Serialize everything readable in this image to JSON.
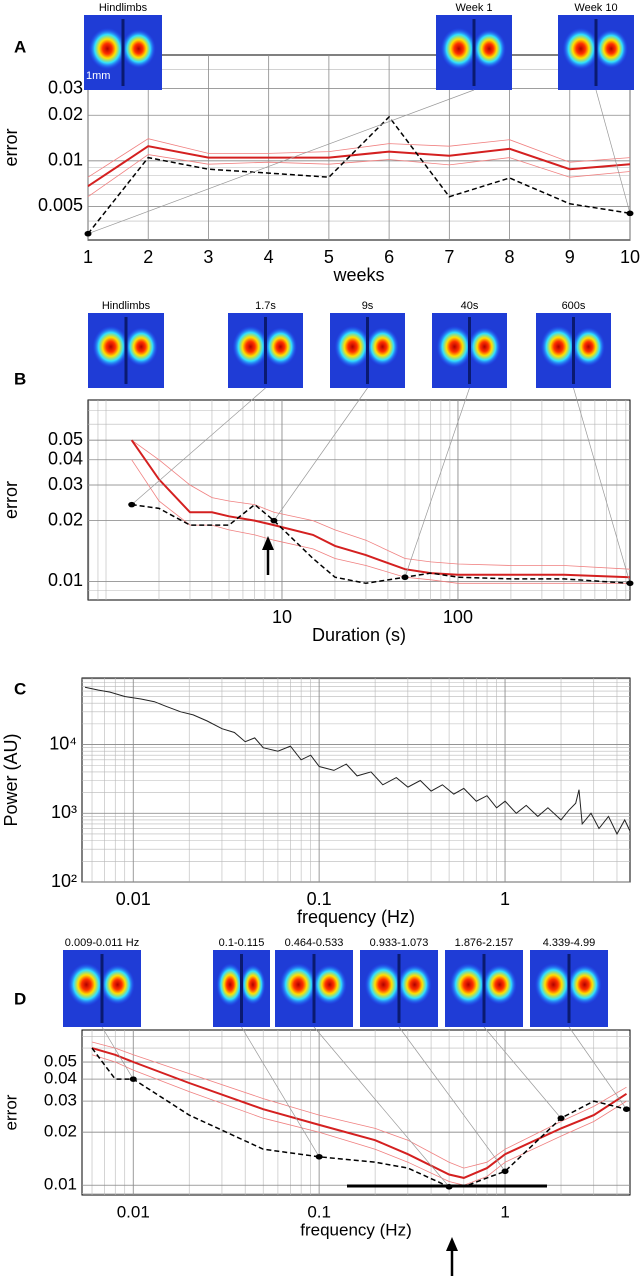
{
  "chart_data": [
    {
      "type": "line",
      "panel": "A",
      "xlabel": "weeks",
      "ylabel": "error",
      "thumbs": [
        "Hindlimbs",
        "Week 1",
        "Week 10"
      ],
      "scale_label": "1mm",
      "x": [
        1,
        2,
        3,
        4,
        5,
        6,
        7,
        8,
        9,
        10
      ],
      "xlim": [
        1,
        10
      ],
      "xticks": [
        1,
        2,
        3,
        4,
        5,
        6,
        7,
        8,
        9,
        10
      ],
      "ylim": [
        0.003,
        0.05
      ],
      "yscale": "log",
      "yticks": [
        0.005,
        0.01,
        0.02,
        0.03
      ],
      "grid": true,
      "minor_grid": true,
      "series": [
        {
          "color": "#f08080",
          "width": 0.8,
          "values": [
            0.0078,
            0.014,
            0.0112,
            0.0112,
            0.0115,
            0.013,
            0.0125,
            0.0138,
            0.0098,
            0.0105
          ]
        },
        {
          "color": "#f08080",
          "width": 0.8,
          "values": [
            0.0058,
            0.011,
            0.0095,
            0.0098,
            0.0095,
            0.0102,
            0.0094,
            0.0105,
            0.0078,
            0.0085
          ]
        },
        {
          "color": "#d42020",
          "width": 2,
          "values": [
            0.0068,
            0.0125,
            0.0105,
            0.0105,
            0.0105,
            0.0115,
            0.0108,
            0.012,
            0.0088,
            0.0095
          ]
        },
        {
          "color": "#000000",
          "width": 1.5,
          "style": "dashed",
          "values": [
            0.0033,
            0.0105,
            0.0088,
            0.0083,
            0.0078,
            0.0195,
            0.0058,
            0.0077,
            0.0052,
            0.0045
          ]
        }
      ]
    },
    {
      "type": "line",
      "panel": "B",
      "xlabel": "Duration (s)",
      "ylabel": "error",
      "thumbs": [
        "Hindlimbs",
        "1.7s",
        "9s",
        "40s",
        "600s"
      ],
      "x": [
        1.4,
        2,
        3,
        4,
        5,
        7,
        9,
        15,
        20,
        30,
        50,
        70,
        100,
        200,
        400,
        950
      ],
      "xscale": "log",
      "xlim": [
        0.79,
        950
      ],
      "xticks": [
        10,
        100
      ],
      "ylim": [
        0.0081,
        0.079
      ],
      "yscale": "log",
      "yticks": [
        0.01,
        0.02,
        0.03,
        0.04,
        0.05
      ],
      "grid": true,
      "minor_grid": true,
      "series": [
        {
          "color": "#f08080",
          "width": 0.8,
          "values": [
            0.05,
            0.04,
            0.03,
            0.026,
            0.025,
            0.024,
            0.022,
            0.02,
            0.018,
            0.016,
            0.013,
            0.0125,
            0.0122,
            0.012,
            0.012,
            0.0115
          ]
        },
        {
          "color": "#f08080",
          "width": 0.8,
          "values": [
            0.04,
            0.025,
            0.019,
            0.019,
            0.018,
            0.017,
            0.016,
            0.0145,
            0.013,
            0.012,
            0.0105,
            0.0102,
            0.0098,
            0.0098,
            0.0098,
            0.0098
          ]
        },
        {
          "color": "#d42020",
          "width": 2,
          "values": [
            0.05,
            0.032,
            0.022,
            0.022,
            0.021,
            0.02,
            0.019,
            0.017,
            0.015,
            0.0135,
            0.0115,
            0.011,
            0.0108,
            0.0108,
            0.0108,
            0.0105
          ]
        },
        {
          "color": "#000000",
          "width": 1.5,
          "style": "dashed",
          "values": [
            0.024,
            0.023,
            0.019,
            0.019,
            0.019,
            0.024,
            0.02,
            0.013,
            0.0105,
            0.0098,
            0.0105,
            0.011,
            0.0105,
            0.0103,
            0.0103,
            0.0098
          ]
        }
      ]
    },
    {
      "type": "line",
      "panel": "C",
      "xlabel": "frequency (Hz)",
      "ylabel": "Power (AU)",
      "x": [
        0.0055,
        0.0065,
        0.0075,
        0.009,
        0.011,
        0.013,
        0.015,
        0.018,
        0.021,
        0.025,
        0.03,
        0.035,
        0.04,
        0.045,
        0.05,
        0.06,
        0.07,
        0.08,
        0.09,
        0.1,
        0.12,
        0.14,
        0.16,
        0.19,
        0.22,
        0.26,
        0.3,
        0.35,
        0.4,
        0.46,
        0.53,
        0.6,
        0.7,
        0.8,
        0.9,
        1,
        1.15,
        1.3,
        1.5,
        1.7,
        2,
        2.2,
        2.4,
        2.5,
        2.6,
        2.9,
        3.2,
        3.6,
        4,
        4.4,
        4.7
      ],
      "xscale": "log",
      "xlim": [
        0.0053,
        4.7
      ],
      "xticks": [
        0.01,
        0.1,
        1
      ],
      "ylim": [
        100,
        93000
      ],
      "yscale": "log",
      "yticks": [
        {
          "value": 100,
          "label": "10²"
        },
        {
          "value": 1000,
          "label": "10³"
        },
        {
          "value": 10000,
          "label": "10⁴"
        }
      ],
      "grid": true,
      "minor_grid": true,
      "series": [
        {
          "color": "#222222",
          "width": 1,
          "values": [
            68000,
            62000,
            58000,
            50000,
            46000,
            42000,
            36000,
            30000,
            27000,
            22000,
            17000,
            15000,
            11000,
            12500,
            9000,
            8000,
            9500,
            6000,
            7000,
            4800,
            4200,
            5200,
            3500,
            4000,
            2600,
            3300,
            2400,
            3000,
            2100,
            2600,
            1900,
            2300,
            1500,
            1800,
            1200,
            1500,
            1000,
            1300,
            900,
            1200,
            800,
            1100,
            1400,
            2200,
            700,
            1000,
            600,
            900,
            500,
            800,
            550
          ]
        }
      ]
    },
    {
      "type": "line",
      "panel": "D",
      "xlabel": "frequency (Hz)",
      "ylabel": "error",
      "thumbs": [
        "0.009-0.011 Hz",
        "0.1-0.115",
        "0.464-0.533",
        "0.933-1.073",
        "1.876-2.157",
        "4.339-4.99"
      ],
      "x": [
        0.006,
        0.008,
        0.01,
        0.02,
        0.05,
        0.1,
        0.2,
        0.3,
        0.5,
        0.6,
        0.8,
        1,
        2,
        3,
        4.5
      ],
      "xscale": "log",
      "xlim": [
        0.0053,
        4.7
      ],
      "xticks": [
        0.01,
        0.1,
        1
      ],
      "ylim": [
        0.0088,
        0.076
      ],
      "yscale": "log",
      "yticks": [
        0.01,
        0.02,
        0.03,
        0.04,
        0.05
      ],
      "grid": true,
      "minor_grid": true,
      "series": [
        {
          "color": "#f08080",
          "width": 0.8,
          "values": [
            0.065,
            0.06,
            0.055,
            0.043,
            0.031,
            0.025,
            0.021,
            0.018,
            0.0135,
            0.0125,
            0.0135,
            0.016,
            0.023,
            0.028,
            0.036
          ]
        },
        {
          "color": "#f08080",
          "width": 0.8,
          "values": [
            0.055,
            0.05,
            0.045,
            0.034,
            0.024,
            0.02,
            0.016,
            0.0135,
            0.0105,
            0.01,
            0.0112,
            0.0135,
            0.019,
            0.023,
            0.03
          ]
        },
        {
          "color": "#d42020",
          "width": 2,
          "values": [
            0.06,
            0.055,
            0.05,
            0.038,
            0.027,
            0.022,
            0.018,
            0.015,
            0.0115,
            0.011,
            0.0125,
            0.015,
            0.021,
            0.025,
            0.033
          ]
        },
        {
          "color": "#000000",
          "width": 1.5,
          "style": "dashed",
          "values": [
            0.06,
            0.04,
            0.04,
            0.025,
            0.016,
            0.0145,
            0.0135,
            0.0125,
            0.0098,
            0.0098,
            0.011,
            0.012,
            0.024,
            0.03,
            0.027
          ]
        }
      ]
    }
  ]
}
